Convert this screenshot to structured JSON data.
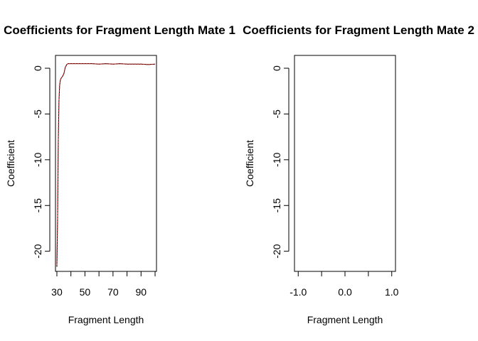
{
  "chart_data": [
    {
      "type": "line",
      "title": "Coefficients for Fragment Length Mate 1",
      "xlabel": "Fragment Length",
      "ylabel": "Coefficient",
      "xlim": [
        29,
        101
      ],
      "ylim": [
        -22.2,
        1.4
      ],
      "xticks": [
        30,
        40,
        50,
        60,
        70,
        80,
        90,
        100
      ],
      "xtick_labels": [
        "30",
        "",
        "50",
        "",
        "70",
        "",
        "90",
        ""
      ],
      "yticks": [
        0,
        -5,
        -10,
        -15,
        -20
      ],
      "ytick_labels": [
        "0",
        "-5",
        "-10",
        "-15",
        "-20"
      ],
      "grid": false,
      "series": [
        {
          "color": "#000000",
          "x": [
            30,
            30.5,
            31,
            31.5,
            32,
            32.5,
            33,
            34,
            35,
            36,
            37,
            38,
            40,
            45,
            50,
            55,
            60,
            65,
            70,
            75,
            80,
            85,
            90,
            95,
            100
          ],
          "y": [
            -21.7,
            -16.5,
            -8.0,
            -3.5,
            -1.8,
            -1.3,
            -1.1,
            -0.9,
            -0.6,
            0.1,
            0.4,
            0.5,
            0.5,
            0.5,
            0.5,
            0.5,
            0.45,
            0.5,
            0.45,
            0.5,
            0.45,
            0.45,
            0.45,
            0.4,
            0.45
          ]
        },
        {
          "color": "#ff0000",
          "x": [
            30,
            30.5,
            31,
            31.5,
            32,
            32.5,
            33,
            34,
            35,
            36,
            37,
            38,
            40,
            45,
            50,
            55,
            60,
            65,
            70,
            75,
            80,
            85,
            90,
            95,
            100
          ],
          "y": [
            -21.5,
            -16.3,
            -8.0,
            -3.4,
            -1.8,
            -1.3,
            -1.1,
            -0.9,
            -0.6,
            0.1,
            0.4,
            0.5,
            0.5,
            0.5,
            0.5,
            0.5,
            0.45,
            0.5,
            0.45,
            0.5,
            0.45,
            0.45,
            0.45,
            0.4,
            0.45
          ]
        }
      ]
    },
    {
      "type": "line",
      "title": "Coefficients for Fragment Length Mate 2",
      "xlabel": "Fragment Length",
      "ylabel": "Coefficient",
      "xlim": [
        -1.08,
        1.08
      ],
      "ylim": [
        -22.2,
        1.4
      ],
      "xticks": [
        -1.0,
        -0.5,
        0.0,
        0.5,
        1.0
      ],
      "xtick_labels": [
        "-1.0",
        "",
        "0.0",
        "",
        "1.0"
      ],
      "yticks": [
        0,
        -5,
        -10,
        -15,
        -20
      ],
      "ytick_labels": [
        "0",
        "-5",
        "-10",
        "-15",
        "-20"
      ],
      "grid": false,
      "series": []
    }
  ]
}
